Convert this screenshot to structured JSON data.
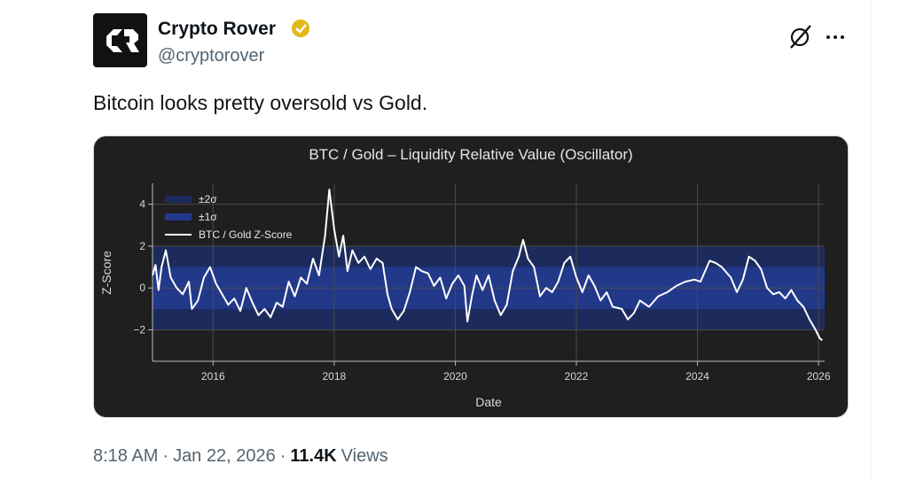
{
  "author": {
    "name": "Crypto Rover",
    "handle": "@cryptorover"
  },
  "tweet": {
    "text": "Bitcoin looks pretty oversold vs Gold."
  },
  "footer": {
    "time": "8:18 AM",
    "separator": "·",
    "date": "Jan 22, 2026",
    "views_count": "11.4K",
    "views_label": "Views"
  },
  "chart_data": {
    "type": "line",
    "title": "BTC / Gold – Liquidity Relative Value (Oscillator)",
    "x_label": "Date",
    "y_label": "Z-Score",
    "xlim": [
      2015,
      2026.1
    ],
    "ylim": [
      -3.5,
      5
    ],
    "xticks": [
      2016,
      2018,
      2020,
      2022,
      2024,
      2026
    ],
    "yticks": [
      {
        "value": -2,
        "label": "−2"
      },
      0,
      2,
      4
    ],
    "grid": true,
    "legend": "top-left",
    "bands": [
      {
        "name": "±2σ",
        "color": "#1c2b5c",
        "range": [
          -2,
          2
        ]
      },
      {
        "name": "±1σ",
        "color": "#22398a",
        "range": [
          -1,
          1
        ]
      }
    ],
    "x": [
      2015.0,
      2015.05,
      2015.1,
      2015.15,
      2015.22,
      2015.3,
      2015.4,
      2015.5,
      2015.6,
      2015.65,
      2015.75,
      2015.85,
      2015.95,
      2016.05,
      2016.15,
      2016.25,
      2016.35,
      2016.45,
      2016.55,
      2016.65,
      2016.75,
      2016.85,
      2016.95,
      2017.05,
      2017.15,
      2017.25,
      2017.35,
      2017.45,
      2017.55,
      2017.65,
      2017.75,
      2017.85,
      2017.92,
      2018.0,
      2018.08,
      2018.15,
      2018.22,
      2018.3,
      2018.4,
      2018.5,
      2018.6,
      2018.7,
      2018.8,
      2018.88,
      2018.95,
      2019.05,
      2019.15,
      2019.25,
      2019.35,
      2019.45,
      2019.55,
      2019.65,
      2019.75,
      2019.85,
      2019.95,
      2020.05,
      2020.15,
      2020.2,
      2020.28,
      2020.35,
      2020.45,
      2020.55,
      2020.65,
      2020.75,
      2020.85,
      2020.95,
      2021.05,
      2021.12,
      2021.2,
      2021.3,
      2021.4,
      2021.5,
      2021.6,
      2021.7,
      2021.8,
      2021.9,
      2022.0,
      2022.1,
      2022.2,
      2022.3,
      2022.4,
      2022.5,
      2022.6,
      2022.75,
      2022.85,
      2022.95,
      2023.05,
      2023.2,
      2023.35,
      2023.5,
      2023.65,
      2023.8,
      2023.95,
      2024.05,
      2024.2,
      2024.3,
      2024.4,
      2024.55,
      2024.65,
      2024.75,
      2024.85,
      2024.95,
      2025.05,
      2025.15,
      2025.25,
      2025.35,
      2025.45,
      2025.55,
      2025.65,
      2025.75,
      2025.85,
      2025.95,
      2026.02,
      2026.06
    ],
    "series": [
      {
        "name": "BTC / Gold Z-Score",
        "color": "#ffffff",
        "values": [
          0.6,
          1.1,
          -0.1,
          1.0,
          1.8,
          0.5,
          0.0,
          -0.3,
          0.3,
          -1.0,
          -0.6,
          0.5,
          1.0,
          0.2,
          -0.3,
          -0.8,
          -0.5,
          -1.1,
          0.0,
          -0.7,
          -1.3,
          -1.0,
          -1.4,
          -0.7,
          -0.9,
          0.3,
          -0.4,
          0.5,
          0.2,
          1.4,
          0.6,
          2.5,
          4.7,
          2.8,
          1.5,
          2.5,
          0.8,
          1.8,
          1.2,
          1.5,
          0.9,
          1.4,
          1.2,
          -0.3,
          -1.0,
          -1.5,
          -1.1,
          -0.2,
          1.0,
          0.8,
          0.7,
          0.1,
          0.5,
          -0.5,
          0.2,
          0.6,
          0.1,
          -1.6,
          -0.3,
          0.6,
          -0.1,
          0.6,
          -0.6,
          -1.3,
          -0.8,
          0.8,
          1.5,
          2.3,
          1.4,
          1.0,
          -0.4,
          0.0,
          -0.2,
          0.3,
          1.2,
          1.5,
          0.5,
          -0.2,
          0.6,
          0.1,
          -0.6,
          -0.2,
          -0.9,
          -1.0,
          -1.5,
          -1.2,
          -0.6,
          -0.9,
          -0.4,
          -0.2,
          0.1,
          0.3,
          0.4,
          0.3,
          1.3,
          1.2,
          1.0,
          0.5,
          -0.2,
          0.4,
          1.5,
          1.3,
          0.9,
          0.0,
          -0.3,
          -0.2,
          -0.5,
          -0.1,
          -0.6,
          -0.9,
          -1.5,
          -2.0,
          -2.4,
          -2.5
        ]
      }
    ]
  }
}
